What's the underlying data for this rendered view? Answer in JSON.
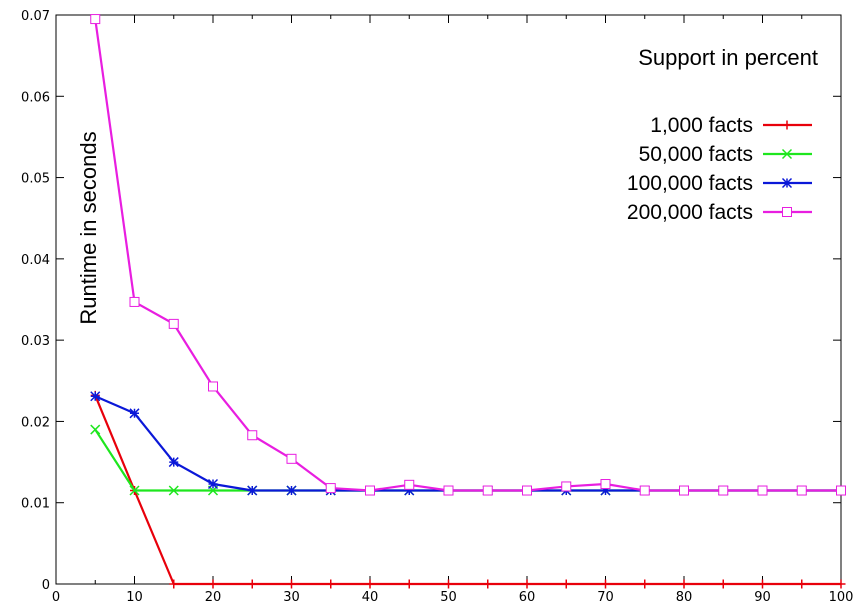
{
  "chart_data": {
    "type": "line",
    "title": "Support in percent",
    "xlabel": "",
    "ylabel": "Runtime in seconds",
    "xlim": [
      0,
      100
    ],
    "ylim": [
      0,
      0.07
    ],
    "x_ticks": [
      0,
      10,
      20,
      30,
      40,
      50,
      60,
      70,
      80,
      90,
      100
    ],
    "y_ticks": [
      0,
      0.01,
      0.02,
      0.03,
      0.04,
      0.05,
      0.06,
      0.07
    ],
    "x_tick_labels": [
      "0",
      "10",
      "20",
      "30",
      "40",
      "50",
      "60",
      "70",
      "80",
      "90",
      "100"
    ],
    "y_tick_labels": [
      "0",
      "0.01",
      "0.02",
      "0.03",
      "0.04",
      "0.05",
      "0.06",
      "0.07"
    ],
    "grid": false,
    "legend_position": "top-right",
    "x": [
      5,
      10,
      15,
      20,
      25,
      30,
      35,
      40,
      45,
      50,
      55,
      60,
      65,
      70,
      75,
      80,
      85,
      90,
      95,
      100
    ],
    "series": [
      {
        "name": "1,000 facts",
        "color": "#e8000b",
        "marker": "plus",
        "values": [
          0.0232,
          0.0115,
          0,
          0,
          0,
          0,
          0,
          0,
          0,
          0,
          0,
          0,
          0,
          0,
          0,
          0,
          0,
          0,
          0,
          0
        ]
      },
      {
        "name": "50,000 facts",
        "color": "#1ee61e",
        "marker": "cross",
        "values": [
          0.019,
          0.0115,
          0.0115,
          0.0115,
          0.0115,
          0.0115,
          0.0115,
          0.0115,
          0.0115,
          0.0115,
          0.0115,
          0.0115,
          0.0115,
          0.0115,
          0.0115,
          0.0115,
          0.0115,
          0.0115,
          0.0115,
          0.0115
        ]
      },
      {
        "name": "100,000 facts",
        "color": "#0b18d8",
        "marker": "star",
        "values": [
          0.0231,
          0.021,
          0.015,
          0.0123,
          0.0115,
          0.0115,
          0.0115,
          0.0115,
          0.0115,
          0.0115,
          0.0115,
          0.0115,
          0.0115,
          0.0115,
          0.0115,
          0.0115,
          0.0115,
          0.0115,
          0.0115,
          0.0115
        ]
      },
      {
        "name": "200,000 facts",
        "color": "#e81ee0",
        "marker": "square",
        "values": [
          0.0695,
          0.0347,
          0.032,
          0.0243,
          0.0183,
          0.0154,
          0.0118,
          0.0115,
          0.0122,
          0.0115,
          0.0115,
          0.0115,
          0.012,
          0.0123,
          0.0115,
          0.0115,
          0.0115,
          0.0115,
          0.0115,
          0.0115
        ]
      }
    ]
  }
}
